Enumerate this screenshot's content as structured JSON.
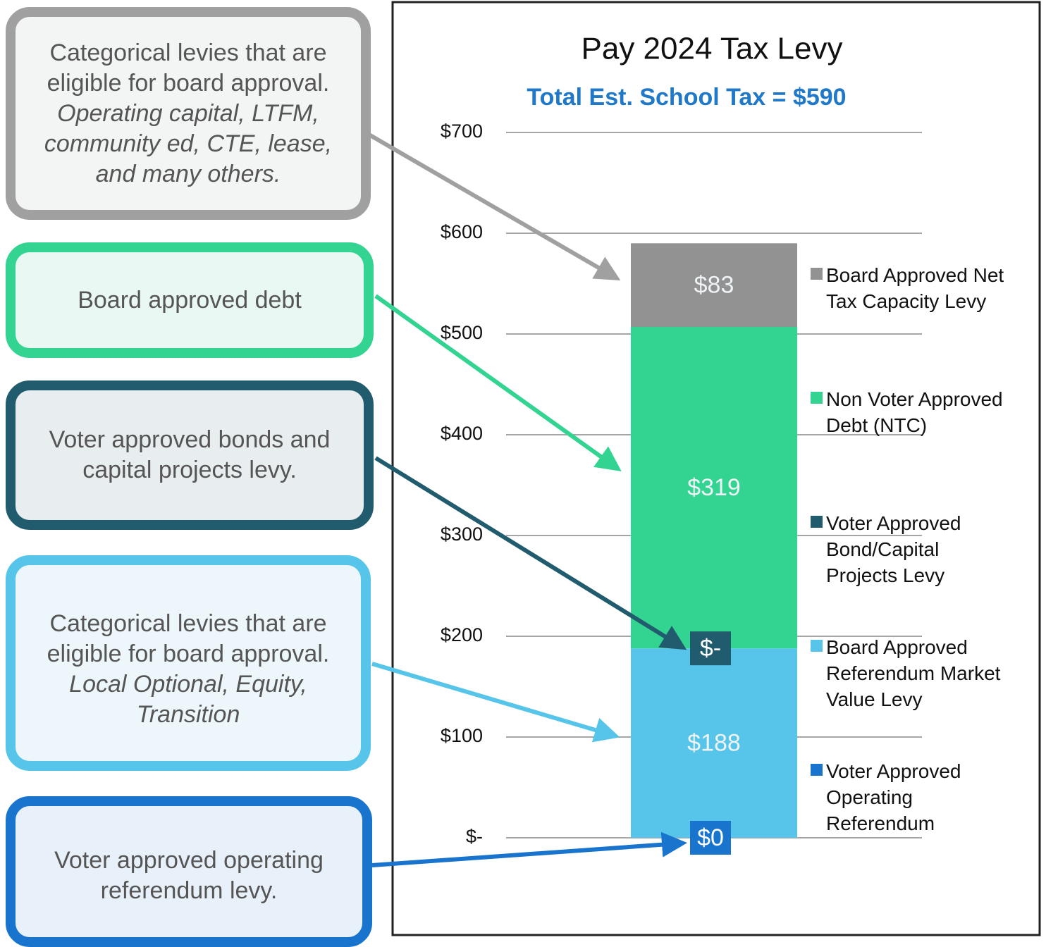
{
  "chart_data": {
    "type": "bar",
    "stacked": true,
    "title": "Pay 2024 Tax Levy",
    "subtitle": "Total Est. School Tax =  $590",
    "ylim": [
      0,
      700
    ],
    "yticks": [
      {
        "value": 0,
        "label": "$-"
      },
      {
        "value": 100,
        "label": "$100"
      },
      {
        "value": 200,
        "label": "$200"
      },
      {
        "value": 300,
        "label": "$300"
      },
      {
        "value": 400,
        "label": "$400"
      },
      {
        "value": 500,
        "label": "$500"
      },
      {
        "value": 600,
        "label": "$600"
      },
      {
        "value": 700,
        "label": "$700"
      }
    ],
    "grid": true,
    "legend": "right",
    "series": [
      {
        "name": "Voter Approved Operating Referendum",
        "color": "#1874cd",
        "values": [
          0
        ],
        "value_labels": [
          "$0"
        ]
      },
      {
        "name": "Board Approved Referendum Market Value Levy",
        "color": "#56c5e9",
        "values": [
          188
        ],
        "value_labels": [
          "$188"
        ]
      },
      {
        "name": "Voter Approved Bond/Capital Projects Levy",
        "color": "#215c6e",
        "values": [
          0
        ],
        "value_labels": [
          "$-"
        ]
      },
      {
        "name": "Non Voter Approved Debt (NTC)",
        "color": "#33d492",
        "values": [
          319
        ],
        "value_labels": [
          "$319"
        ]
      },
      {
        "name": "Board Approved Net Tax Capacity Levy",
        "color": "#929292",
        "values": [
          83
        ],
        "value_labels": [
          "$83"
        ]
      }
    ]
  },
  "callouts": [
    {
      "text": "Categorical levies that are eligible for board approval.",
      "italic": "Operating capital, LTFM, community ed, CTE, lease, and many others."
    },
    {
      "text": "Board approved debt"
    },
    {
      "text": "Voter approved bonds and capital projects levy."
    },
    {
      "text": "Categorical levies that are eligible for board approval.",
      "italic": "Local Optional, Equity, Transition"
    },
    {
      "text": "Voter approved operating referendum levy."
    }
  ]
}
